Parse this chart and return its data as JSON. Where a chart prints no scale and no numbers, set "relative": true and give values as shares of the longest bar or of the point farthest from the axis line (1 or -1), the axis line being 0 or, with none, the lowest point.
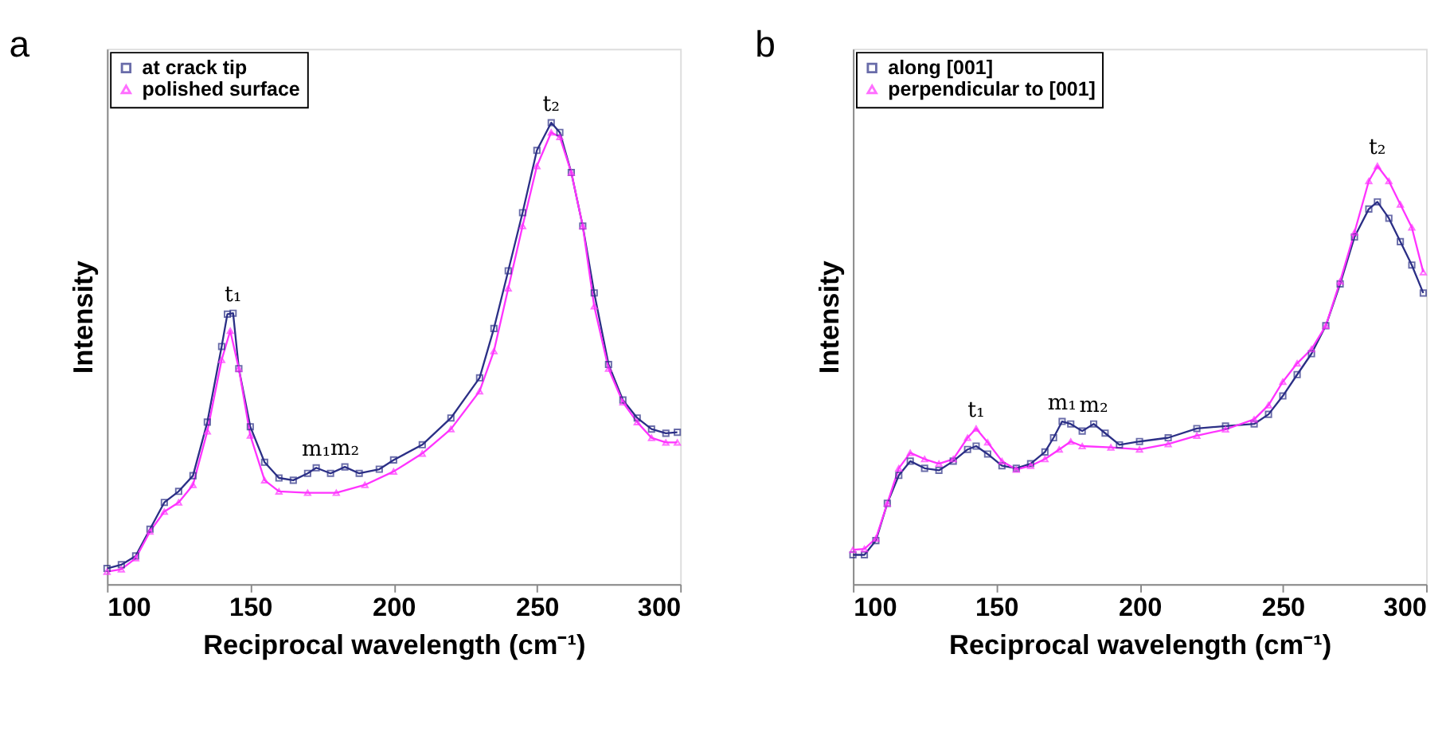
{
  "chart_data": [
    {
      "type": "line",
      "title": "a",
      "xlabel": "Reciprocal wavelength (cm⁻¹)",
      "ylabel": "Intensity",
      "relative": true,
      "xlim": [
        100,
        300
      ],
      "xticks": [
        100,
        150,
        200,
        250,
        300
      ],
      "grid": false,
      "legend": "top left",
      "line_style": "solid",
      "annotations": [
        {
          "text": "t₁",
          "x": 144,
          "y": 0.587
        },
        {
          "text": "m₁",
          "x": 173,
          "y": 0.252
        },
        {
          "text": "m₂",
          "x": 183,
          "y": 0.254
        },
        {
          "text": "t₂",
          "x": 255,
          "y": 1
        }
      ],
      "series": [
        {
          "name": "at crack tip",
          "color": "#2b2f86",
          "marker": "square",
          "x": [
            100,
            105,
            110,
            115,
            120,
            125,
            130,
            135,
            140,
            142,
            144,
            146,
            150,
            155,
            160,
            165,
            170,
            173,
            178,
            183,
            188,
            195,
            200,
            210,
            220,
            230,
            235,
            240,
            245,
            250,
            255,
            258,
            262,
            266,
            270,
            275,
            280,
            285,
            290,
            295,
            299
          ],
          "values": [
            0.034,
            0.042,
            0.061,
            0.119,
            0.177,
            0.201,
            0.235,
            0.351,
            0.515,
            0.585,
            0.587,
            0.467,
            0.341,
            0.264,
            0.23,
            0.225,
            0.24,
            0.252,
            0.24,
            0.254,
            0.24,
            0.249,
            0.269,
            0.302,
            0.36,
            0.447,
            0.554,
            0.679,
            0.805,
            0.94,
            1,
            0.979,
            0.892,
            0.776,
            0.631,
            0.476,
            0.399,
            0.36,
            0.336,
            0.327,
            0.329
          ]
        },
        {
          "name": "polished surface",
          "color": "#ff33ff",
          "marker": "triangle",
          "x": [
            100,
            105,
            110,
            115,
            120,
            125,
            130,
            135,
            140,
            143,
            146,
            150,
            155,
            160,
            170,
            180,
            190,
            200,
            210,
            220,
            230,
            235,
            240,
            245,
            250,
            255,
            258,
            262,
            266,
            270,
            275,
            280,
            285,
            290,
            295,
            299
          ],
          "values": [
            0.027,
            0.032,
            0.056,
            0.114,
            0.157,
            0.177,
            0.215,
            0.331,
            0.486,
            0.549,
            0.467,
            0.322,
            0.225,
            0.201,
            0.198,
            0.198,
            0.215,
            0.244,
            0.283,
            0.336,
            0.418,
            0.505,
            0.641,
            0.776,
            0.906,
            0.979,
            0.969,
            0.892,
            0.776,
            0.602,
            0.467,
            0.394,
            0.351,
            0.317,
            0.307,
            0.307
          ]
        }
      ]
    },
    {
      "type": "line",
      "title": "b",
      "xlabel": "Reciprocal wavelength (cm⁻¹)",
      "ylabel": "Intensity",
      "relative": true,
      "xlim": [
        100,
        300
      ],
      "xticks": [
        100,
        150,
        200,
        250,
        300
      ],
      "grid": false,
      "legend": "top left",
      "line_style": "solid",
      "annotations": [
        {
          "text": "t₁",
          "x": 143,
          "y": 0.372
        },
        {
          "text": "m₁",
          "x": 173,
          "y": 0.389
        },
        {
          "text": "m₂",
          "x": 184,
          "y": 0.383
        },
        {
          "text": "t₂",
          "x": 283,
          "y": 1
        }
      ],
      "series": [
        {
          "name": "along [001]",
          "color": "#2b2f86",
          "marker": "square",
          "x": [
            100,
            104,
            108,
            112,
            116,
            120,
            125,
            130,
            135,
            140,
            143,
            147,
            152,
            157,
            162,
            167,
            170,
            173,
            176,
            180,
            184,
            188,
            193,
            200,
            210,
            220,
            230,
            240,
            245,
            250,
            255,
            260,
            265,
            270,
            275,
            280,
            283,
            287,
            291,
            295,
            299
          ],
          "values": [
            0.07,
            0.07,
            0.104,
            0.193,
            0.26,
            0.294,
            0.277,
            0.272,
            0.294,
            0.322,
            0.33,
            0.311,
            0.283,
            0.277,
            0.288,
            0.316,
            0.35,
            0.389,
            0.383,
            0.366,
            0.383,
            0.361,
            0.333,
            0.341,
            0.35,
            0.372,
            0.378,
            0.383,
            0.406,
            0.45,
            0.501,
            0.551,
            0.618,
            0.718,
            0.83,
            0.897,
            0.914,
            0.875,
            0.819,
            0.763,
            0.696
          ]
        },
        {
          "name": "perpendicular to [001]",
          "color": "#ff33ff",
          "marker": "triangle",
          "x": [
            100,
            104,
            108,
            112,
            116,
            120,
            125,
            130,
            135,
            140,
            143,
            147,
            152,
            157,
            162,
            167,
            172,
            176,
            180,
            190,
            200,
            210,
            220,
            230,
            240,
            245,
            250,
            255,
            260,
            265,
            270,
            275,
            280,
            283,
            287,
            291,
            295,
            299
          ],
          "values": [
            0.082,
            0.084,
            0.109,
            0.193,
            0.277,
            0.314,
            0.299,
            0.288,
            0.299,
            0.35,
            0.372,
            0.339,
            0.294,
            0.274,
            0.283,
            0.299,
            0.322,
            0.341,
            0.33,
            0.327,
            0.322,
            0.335,
            0.355,
            0.37,
            0.394,
            0.428,
            0.484,
            0.528,
            0.562,
            0.618,
            0.724,
            0.841,
            0.964,
            1,
            0.964,
            0.908,
            0.853,
            0.746
          ]
        }
      ]
    }
  ]
}
